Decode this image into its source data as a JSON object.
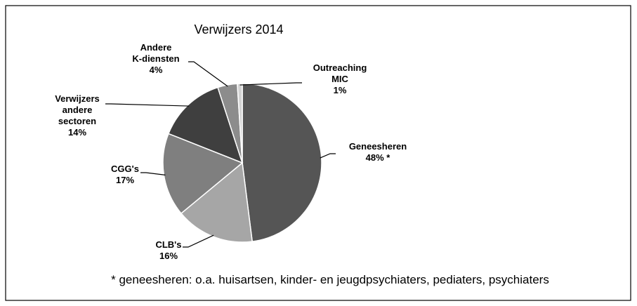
{
  "chart_data": {
    "type": "pie",
    "title": "Verwijzers 2014",
    "categories": [
      "Geneesheren",
      "CLB's",
      "CGG's",
      "Verwijzers andere sectoren",
      "Andere K-diensten",
      "Outreaching MIC"
    ],
    "values": [
      48,
      16,
      17,
      14,
      4,
      1
    ],
    "value_labels": [
      "48% *",
      "16%",
      "17%",
      "14%",
      "4%",
      "1%"
    ],
    "colors": [
      "#555555",
      "#a6a6a6",
      "#7f7f7f",
      "#3f3f3f",
      "#8c8c8c",
      "#d3d3d3"
    ],
    "annotation": "* geneesheren: o.a. huisartsen, kinder- en jeugdpsychiaters, pediaters, psychiaters"
  }
}
